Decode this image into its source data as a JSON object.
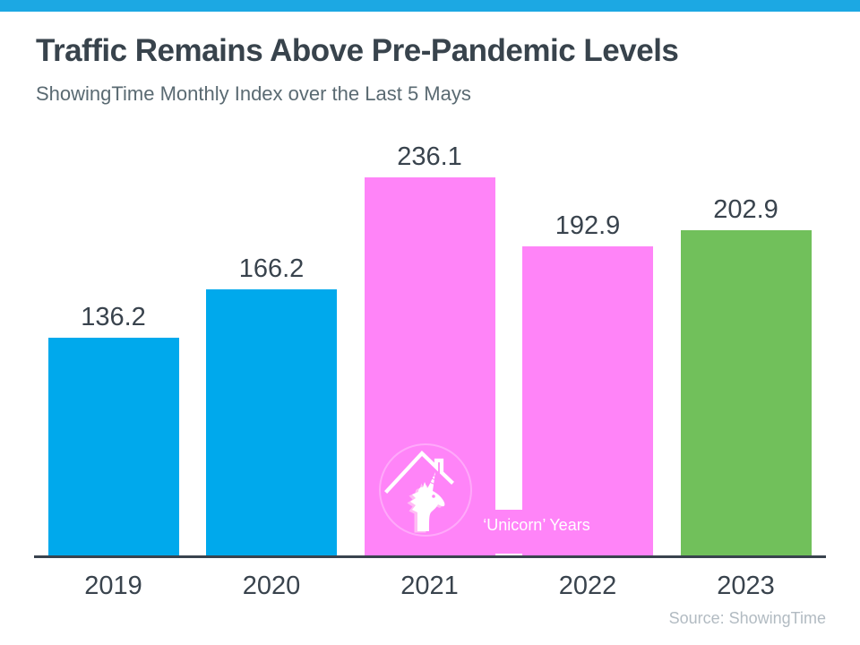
{
  "page": {
    "title": "Traffic Remains Above Pre-Pandemic Levels",
    "subtitle": "ShowingTime Monthly Index over the Last 5 Mays",
    "source": "Source: ShowingTime"
  },
  "annotation": {
    "label": "‘Unicorn’ Years",
    "icon": "unicorn-house-icon",
    "applies_to": [
      "2021",
      "2022"
    ]
  },
  "colors": {
    "top_strip": "#1CA8E3",
    "blue_bar": "#00A9EC",
    "pink_bar": "#FF84F8",
    "green_bar": "#71C05B",
    "axis_line": "#39434E",
    "title_text": "#38434C",
    "subtitle_text": "#5A6A72",
    "label_text": "#39434D",
    "source_text": "#B2BBC2",
    "annotation_text": "#FFFFFF"
  },
  "chart_data": {
    "type": "bar",
    "title": "Traffic Remains Above Pre-Pandemic Levels",
    "subtitle": "ShowingTime Monthly Index over the Last 5 Mays",
    "categories": [
      "2019",
      "2020",
      "2021",
      "2022",
      "2023"
    ],
    "values": [
      136.2,
      166.2,
      236.1,
      192.9,
      202.9
    ],
    "value_labels": [
      "136.2",
      "166.2",
      "236.1",
      "192.9",
      "202.9"
    ],
    "bar_colors": [
      "#00A9EC",
      "#00A9EC",
      "#FF84F8",
      "#FF84F8",
      "#71C05B"
    ],
    "annotation": "‘Unicorn’ Years",
    "annotation_categories": [
      "2021",
      "2022"
    ],
    "source": "Source: ShowingTime",
    "xlabel": "",
    "ylabel": "",
    "ylim": [
      0,
      260
    ],
    "grid": false,
    "legend": false,
    "y_axis_hidden": true
  }
}
